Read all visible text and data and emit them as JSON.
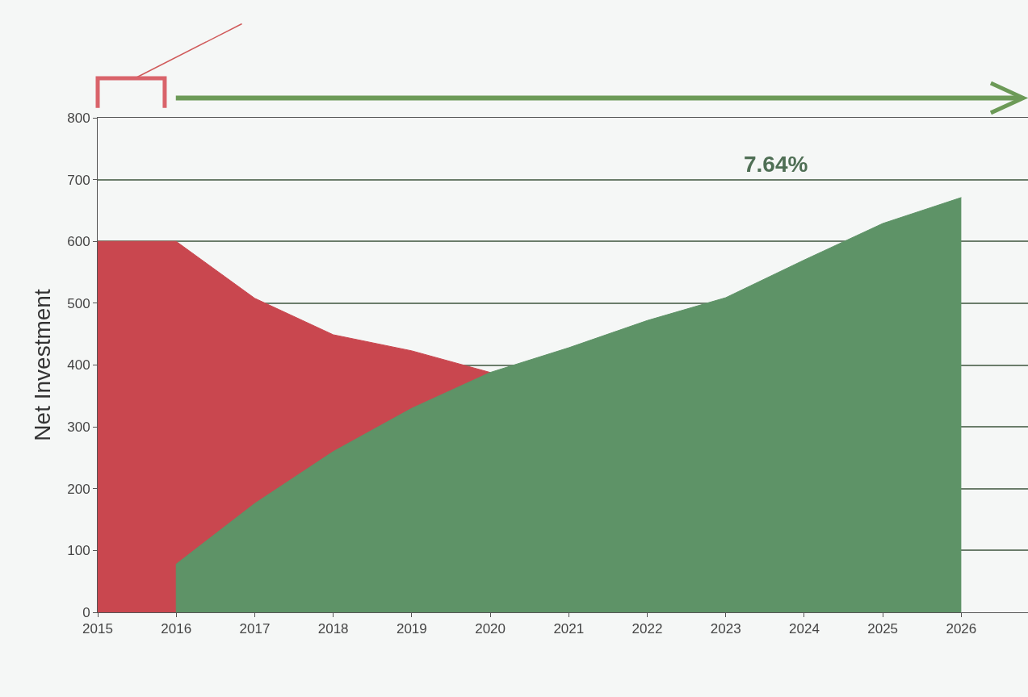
{
  "chart_data": {
    "type": "area",
    "ylabel": "Net Investment",
    "annotations": [
      "7.64%"
    ],
    "series": [
      {
        "color": "#c9474f",
        "x": [
          2015,
          2016,
          2017,
          2018,
          2019,
          2020
        ],
        "values": [
          600,
          600,
          508,
          449,
          423,
          388
        ]
      },
      {
        "color": "#5e9367",
        "x": [
          2016,
          2016,
          2017,
          2018,
          2019,
          2020,
          2021,
          2022,
          2023,
          2024,
          2025,
          2026
        ],
        "values": [
          0,
          78,
          176,
          260,
          330,
          388,
          428,
          472,
          509,
          570,
          629,
          671
        ]
      }
    ],
    "xlim": [
      2015,
      2026.85
    ],
    "xticks": [
      2015,
      2016,
      2017,
      2018,
      2019,
      2020,
      2021,
      2022,
      2023,
      2024,
      2025,
      2026
    ],
    "ylim": [
      0,
      800
    ],
    "yticks": [
      0,
      100,
      200,
      300,
      400,
      500,
      600,
      700,
      800
    ],
    "grid": "y"
  }
}
